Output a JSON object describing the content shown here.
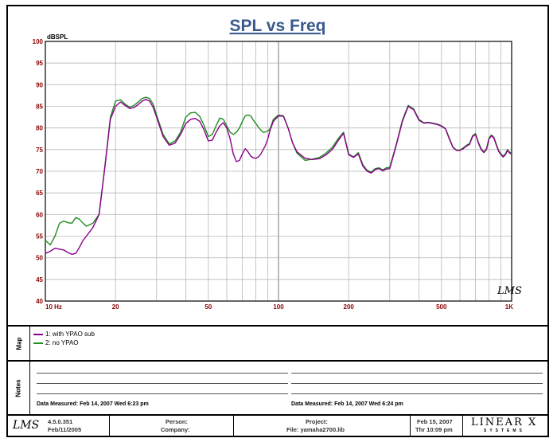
{
  "chart_data": {
    "type": "line",
    "title": "SPL vs Freq",
    "ylabel": "dBSPL",
    "xscale": "log",
    "xlim": [
      10,
      1000
    ],
    "ylim": [
      40,
      100
    ],
    "yticks": [
      40,
      45,
      50,
      55,
      60,
      65,
      70,
      75,
      80,
      85,
      90,
      95,
      100
    ],
    "xtick_labels": [
      {
        "value": 10,
        "label": "10 Hz"
      },
      {
        "value": 20,
        "label": "20"
      },
      {
        "value": 50,
        "label": "50"
      },
      {
        "value": 100,
        "label": "100"
      },
      {
        "value": 200,
        "label": "200"
      },
      {
        "value": 500,
        "label": "500"
      },
      {
        "value": 1000,
        "label": "1K"
      }
    ],
    "grid": true,
    "series": [
      {
        "name": "1: with YPAO sub",
        "color": "#8b008b",
        "x": [
          10,
          10.5,
          11,
          11.5,
          12,
          12.5,
          13,
          13.5,
          14,
          14.5,
          15,
          16,
          17,
          18,
          19,
          20,
          21,
          22,
          23,
          24,
          25,
          26,
          27,
          28,
          29,
          30,
          32,
          34,
          36,
          38,
          40,
          42,
          44,
          46,
          48,
          50,
          52,
          54,
          56,
          58,
          60,
          62,
          64,
          66,
          68,
          70,
          72,
          74,
          76,
          78,
          80,
          82,
          84,
          86,
          88,
          90,
          92,
          95,
          100,
          105,
          110,
          115,
          120,
          130,
          140,
          150,
          160,
          170,
          180,
          190,
          200,
          210,
          220,
          230,
          240,
          250,
          260,
          270,
          280,
          290,
          300,
          320,
          340,
          360,
          380,
          400,
          420,
          440,
          460,
          480,
          500,
          520,
          540,
          560,
          580,
          600,
          620,
          640,
          660,
          680,
          700,
          720,
          740,
          760,
          780,
          800,
          820,
          840,
          860,
          880,
          900,
          920,
          940,
          960,
          980,
          1000
        ],
        "values": [
          51,
          51.5,
          52.2,
          52,
          51.8,
          51.2,
          50.8,
          51,
          52.4,
          54,
          55,
          57,
          60,
          71,
          82,
          85,
          86,
          85.2,
          84.5,
          84.7,
          85.4,
          86.2,
          86.6,
          86.2,
          84.8,
          82.5,
          78,
          76,
          76.5,
          78.5,
          81,
          82,
          82.2,
          81.5,
          79.5,
          77,
          77.2,
          79,
          80.5,
          81.2,
          80,
          77.5,
          74,
          72.2,
          72.5,
          74,
          75.2,
          74.5,
          73.5,
          73.1,
          73,
          73.3,
          74,
          75,
          76,
          77.5,
          79.5,
          81.5,
          82.8,
          82.7,
          80,
          76.5,
          74.5,
          73,
          72.7,
          72.9,
          73.8,
          75,
          77,
          78.8,
          73.8,
          73.2,
          74,
          71.2,
          70,
          69.6,
          70.4,
          70.6,
          70.1,
          70.5,
          70.6,
          76,
          81.5,
          85,
          84.2,
          81.8,
          81.1,
          81.2,
          81,
          80.8,
          80.4,
          79.8,
          77.5,
          75.5,
          74.8,
          74.8,
          75.2,
          75.8,
          76.2,
          78,
          78.5,
          76.5,
          75,
          74.3,
          75,
          77.5,
          78.2,
          77.6,
          76,
          74.6,
          73.8,
          73.3,
          73.8,
          74.8,
          74.2,
          74
        ]
      },
      {
        "name": "2: no YPAO",
        "color": "#1f8c1f",
        "x": [
          10,
          10.5,
          11,
          11.5,
          12,
          12.5,
          13,
          13.5,
          14,
          14.5,
          15,
          16,
          17,
          18,
          19,
          20,
          21,
          22,
          23,
          24,
          25,
          26,
          27,
          28,
          29,
          30,
          32,
          34,
          36,
          38,
          40,
          42,
          44,
          46,
          48,
          50,
          52,
          54,
          56,
          58,
          60,
          62,
          64,
          66,
          68,
          70,
          72,
          74,
          76,
          78,
          80,
          82,
          84,
          86,
          88,
          90,
          92,
          95,
          100,
          105,
          110,
          115,
          120,
          130,
          140,
          150,
          160,
          170,
          180,
          190,
          200,
          210,
          220,
          230,
          240,
          250,
          260,
          270,
          280,
          290,
          300,
          320,
          340,
          360,
          380,
          400,
          420,
          440,
          460,
          480,
          500,
          520,
          540,
          560,
          580,
          600,
          620,
          640,
          660,
          680,
          700,
          720,
          740,
          760,
          780,
          800,
          820,
          840,
          860,
          880,
          900,
          920,
          940,
          960,
          980,
          1000
        ],
        "values": [
          54,
          53,
          55,
          58,
          58.5,
          58.1,
          58,
          59.3,
          58.9,
          58,
          57.3,
          58,
          60,
          71,
          82.5,
          86.2,
          86.5,
          85.5,
          84.8,
          85.2,
          86,
          86.8,
          87.1,
          86.8,
          85.5,
          83,
          78.5,
          76.3,
          77,
          79,
          82.5,
          83.5,
          83.6,
          82.6,
          80.5,
          78,
          78.5,
          80.5,
          82.3,
          82,
          80.5,
          79,
          78.5,
          79,
          80,
          81.5,
          82.8,
          83,
          82.8,
          81.8,
          81,
          80.2,
          79.5,
          79,
          79.1,
          79.3,
          79.8,
          82,
          83,
          82.8,
          80,
          76.5,
          74.2,
          72.5,
          72.8,
          73.2,
          74.2,
          75.5,
          77.5,
          79,
          74,
          73.3,
          74.3,
          71.5,
          70.2,
          69.8,
          70.6,
          70.8,
          70.3,
          70.8,
          70.9,
          76.2,
          81.8,
          85.2,
          84.4,
          82,
          81.2,
          81.3,
          81.1,
          80.9,
          80.5,
          79.9,
          77.7,
          75.6,
          74.9,
          74.9,
          75.4,
          76,
          76.4,
          78.2,
          78.7,
          76.7,
          75.2,
          74.5,
          75.2,
          77.7,
          78.4,
          77.8,
          76.2,
          74.8,
          74,
          73.5,
          74,
          75,
          74.4,
          74.2
        ]
      }
    ]
  },
  "legend": {
    "title": "Map",
    "items": [
      {
        "label": "1: with YPAO sub",
        "color": "#8b008b"
      },
      {
        "label": "2: no YPAO",
        "color": "#1f8c1f"
      }
    ]
  },
  "notes": {
    "title": "Notes",
    "left_measured": "Data Measured: Feb 14, 2007  Wed  6:23 pm",
    "right_measured": "Data Measured: Feb 14, 2007  Wed  6:24 pm"
  },
  "footer": {
    "logo": "LMS",
    "version": "4.5.0.351",
    "build_date": "Feb/11/2005",
    "person_label": "Person:",
    "company_label": "Company:",
    "project_label": "Project:",
    "file_label": "File: yamaha2700.lib",
    "date": "Feb 15, 2007",
    "time": "Thr 10:09 pm",
    "brand": "LINEAR X",
    "brand_sub": "SYSTEMS"
  },
  "corner_logo": "LMS"
}
